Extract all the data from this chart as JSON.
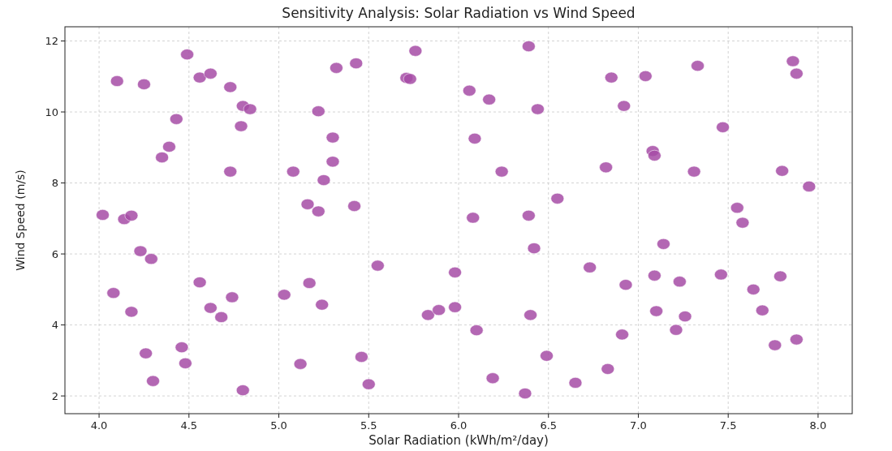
{
  "chart_data": {
    "type": "scatter",
    "title": "Sensitivity Analysis: Solar Radiation vs Wind Speed",
    "xlabel": "Solar Radiation (kWh/m²/day)",
    "ylabel": "Wind Speed (m/s)",
    "x": [
      4.02,
      4.1,
      4.08,
      4.14,
      4.18,
      4.18,
      4.23,
      4.25,
      4.26,
      4.29,
      4.3,
      4.35,
      4.39,
      4.43,
      4.46,
      4.48,
      4.49,
      4.56,
      4.56,
      4.62,
      4.62,
      4.68,
      4.73,
      4.73,
      4.74,
      4.79,
      4.8,
      4.8,
      4.84,
      5.03,
      5.08,
      5.12,
      5.16,
      5.17,
      5.22,
      5.22,
      5.24,
      5.25,
      5.3,
      5.3,
      5.32,
      5.42,
      5.43,
      5.46,
      5.5,
      5.55,
      5.71,
      5.73,
      5.76,
      5.83,
      5.89,
      5.98,
      5.98,
      6.06,
      6.08,
      6.09,
      6.1,
      6.17,
      6.19,
      6.24,
      6.37,
      6.39,
      6.39,
      6.4,
      6.42,
      6.44,
      6.49,
      6.55,
      6.65,
      6.73,
      6.82,
      6.83,
      6.85,
      6.91,
      6.92,
      6.93,
      7.04,
      7.08,
      7.09,
      7.09,
      7.1,
      7.14,
      7.21,
      7.23,
      7.26,
      7.31,
      7.33,
      7.46,
      7.47,
      7.55,
      7.58,
      7.64,
      7.69,
      7.76,
      7.79,
      7.8,
      7.86,
      7.88,
      7.88,
      7.95
    ],
    "series": [
      {
        "color": "#a64ca6",
        "values": [
          7.1,
          10.87,
          4.9,
          6.98,
          7.08,
          4.37,
          6.08,
          10.78,
          3.2,
          5.86,
          2.42,
          8.72,
          9.02,
          9.8,
          3.37,
          2.92,
          11.62,
          10.97,
          5.2,
          11.08,
          4.48,
          4.22,
          10.7,
          8.32,
          4.78,
          9.6,
          10.17,
          2.16,
          10.08,
          4.85,
          8.32,
          2.9,
          7.4,
          5.18,
          10.02,
          7.2,
          4.57,
          8.08,
          9.28,
          8.6,
          11.24,
          7.35,
          11.37,
          3.1,
          2.33,
          5.67,
          10.96,
          10.93,
          11.72,
          4.28,
          4.42,
          4.5,
          5.48,
          10.6,
          7.02,
          9.25,
          3.85,
          10.35,
          2.5,
          8.32,
          2.07,
          11.85,
          7.08,
          4.28,
          6.16,
          10.08,
          3.13,
          7.56,
          2.37,
          5.62,
          8.44,
          2.76,
          10.97,
          3.73,
          10.17,
          5.13,
          11.01,
          8.9,
          8.77,
          5.39,
          4.39,
          6.28,
          3.86,
          5.22,
          4.24,
          8.32,
          11.3,
          5.42,
          9.57,
          7.3,
          6.88,
          5.0,
          4.41,
          3.43,
          5.37,
          8.34,
          11.43,
          11.08,
          3.59,
          7.9
        ]
      }
    ],
    "xlim": [
      3.81,
      8.19
    ],
    "ylim": [
      1.5,
      12.4
    ],
    "xticks": [
      {
        "value": 4,
        "label": "4.0"
      },
      {
        "value": 4.5,
        "label": "4.5"
      },
      {
        "value": 5,
        "label": "5.0"
      },
      {
        "value": 5.5,
        "label": "5.5"
      },
      {
        "value": 6,
        "label": "6.0"
      },
      {
        "value": 6.5,
        "label": "6.5"
      },
      {
        "value": 7,
        "label": "7.0"
      },
      {
        "value": 7.5,
        "label": "7.5"
      },
      {
        "value": 8,
        "label": "8.0"
      }
    ],
    "yticks": [
      2,
      4,
      6,
      8,
      10,
      12
    ],
    "grid": true,
    "marker": "circle"
  }
}
